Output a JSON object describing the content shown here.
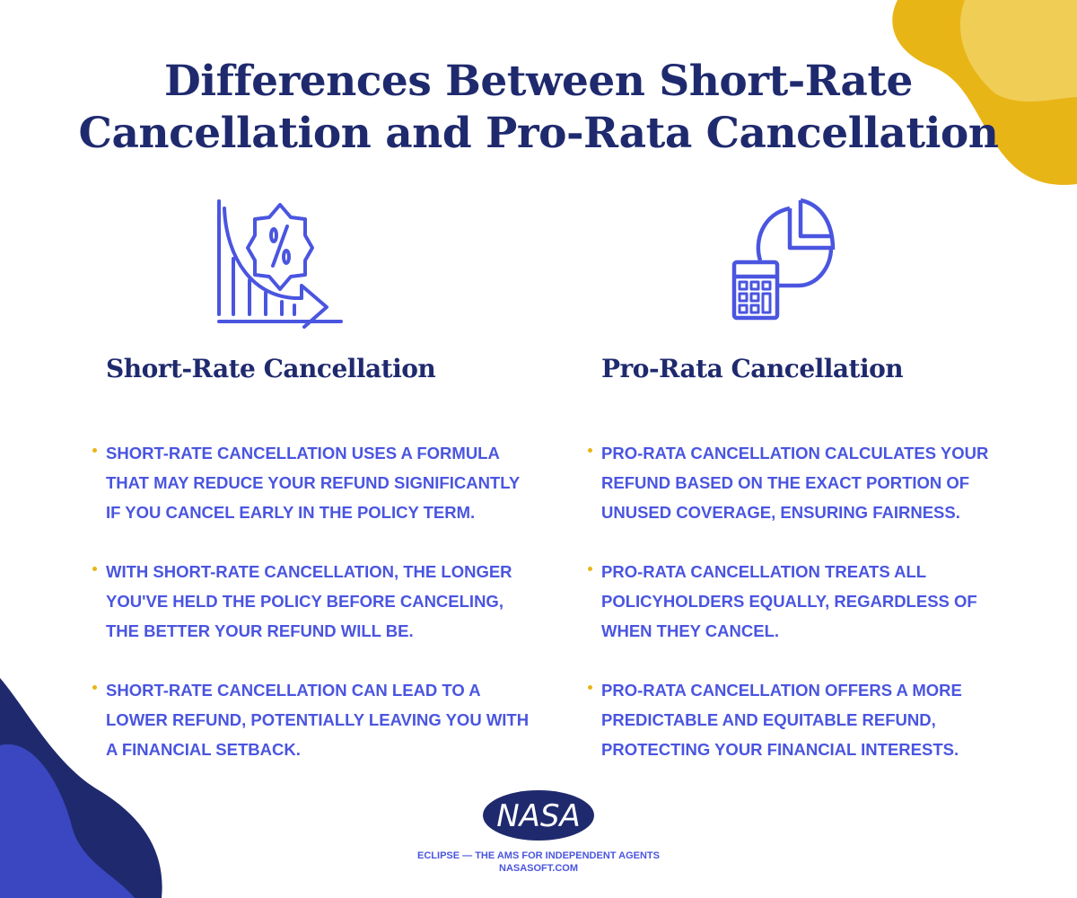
{
  "title": [
    "Differences Between Short-Rate",
    "Cancellation and Pro-Rata Cancellation"
  ],
  "left": {
    "icon": "declining-chart-percent-icon",
    "heading": "Short-Rate Cancellation",
    "bullets": [
      "Short-rate cancellation uses a formula that may reduce your refund significantly if you cancel early in the policy term.",
      "With short-rate cancellation, the longer you've held the policy before canceling, the better your refund will be.",
      "Short-rate cancellation can lead to a lower refund, potentially leaving you with a financial setback."
    ]
  },
  "right": {
    "icon": "calculator-pie-chart-icon",
    "heading": "Pro-Rata Cancellation",
    "bullets": [
      "Pro-rata cancellation calculates your refund based on the exact portion of unused coverage, ensuring fairness.",
      "Pro-rata cancellation treats all policyholders equally, regardless of when they cancel.",
      "Pro-rata cancellation offers a more predictable and equitable refund, protecting your financial interests."
    ]
  },
  "footer": {
    "logo_text": "NASA",
    "tagline": "ECLIPSE — THE AMS FOR INDEPENDENT AGENTS",
    "url": "NASASOFT.COM"
  },
  "colors": {
    "navy": "#1f2a6e",
    "blue": "#4a55e0",
    "yellow": "#e8b516",
    "light_yellow": "#f0cd55"
  }
}
